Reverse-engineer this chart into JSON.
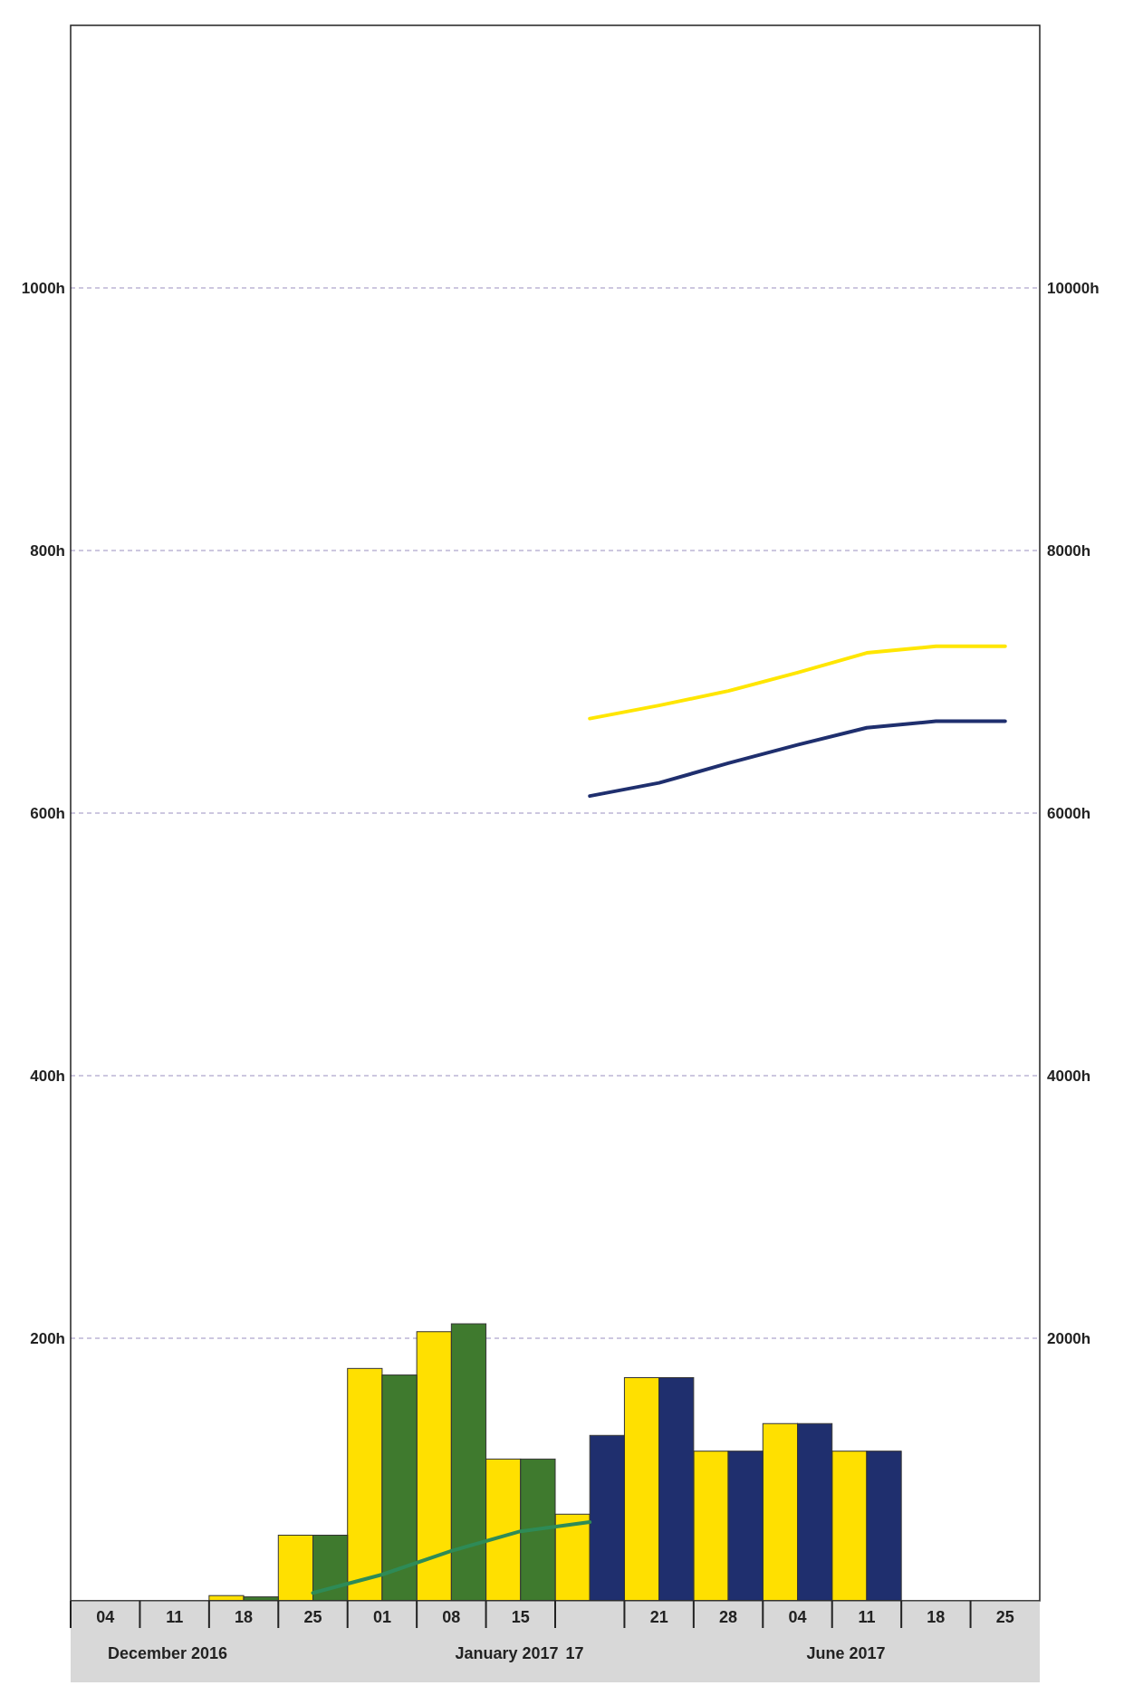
{
  "chart_data": {
    "type": "bar",
    "categories": [
      "04",
      "11",
      "18",
      "25",
      "01",
      "08",
      "15",
      null,
      "21",
      "28",
      "04",
      "11",
      "18",
      "25"
    ],
    "series": [
      {
        "color": "#ffe000",
        "values": [
          0,
          0,
          4,
          50,
          177,
          205,
          108,
          66,
          170,
          114,
          135,
          114,
          null,
          null
        ]
      },
      {
        "colors": [
          "#3f7a2e",
          "#3f7a2e",
          "#3f7a2e",
          "#3f7a2e",
          "#3f7a2e",
          "#3f7a2e",
          "#3f7a2e",
          "#1f2f6e",
          "#1f2f6e",
          "#1f2f6e",
          "#1f2f6e",
          "#1f2f6e",
          null,
          null
        ],
        "values": [
          0,
          0,
          3,
          50,
          172,
          211,
          108,
          126,
          170,
          114,
          135,
          114,
          null,
          null
        ]
      },
      {
        "type": "line",
        "axis": "y2",
        "color": "#2e8b57",
        "values": [
          null,
          null,
          null,
          60,
          200,
          380,
          530,
          600,
          null,
          null,
          null,
          null,
          null,
          null
        ]
      },
      {
        "type": "line",
        "axis": "y2",
        "color": "#ffe600",
        "values": [
          null,
          null,
          null,
          null,
          null,
          null,
          null,
          6720,
          6820,
          6930,
          7070,
          7220,
          7270,
          7270
        ]
      },
      {
        "type": "line",
        "axis": "y2",
        "color": "#1f2f6e",
        "values": [
          null,
          null,
          null,
          null,
          null,
          null,
          null,
          6130,
          6230,
          6380,
          6520,
          6650,
          6700,
          6700
        ]
      }
    ],
    "ylim": [
      0,
      1200
    ],
    "yticks": [
      {
        "value": 200,
        "label": "200h"
      },
      {
        "value": 400,
        "label": "400h"
      },
      {
        "value": 600,
        "label": "600h"
      },
      {
        "value": 800,
        "label": "800h"
      },
      {
        "value": 1000,
        "label": "1000h"
      }
    ],
    "y2lim": [
      0,
      12000
    ],
    "y2ticks": [
      {
        "value": 2000,
        "label": "2000h"
      },
      {
        "value": 4000,
        "label": "4000h"
      },
      {
        "value": 6000,
        "label": "6000h"
      },
      {
        "value": 8000,
        "label": "8000h"
      },
      {
        "value": 10000,
        "label": "10000h"
      }
    ],
    "grid": "y",
    "annotations": [
      "December 2016",
      "January 2017",
      "17",
      "June 2017"
    ]
  }
}
